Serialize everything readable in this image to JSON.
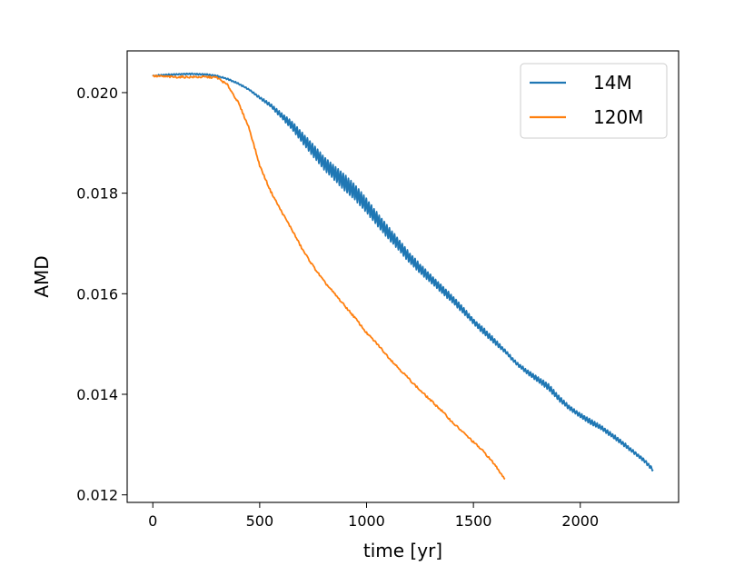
{
  "chart_data": {
    "type": "line",
    "title": "",
    "xlabel": "time [yr]",
    "ylabel": "AMD",
    "xlim": [
      -120,
      2460
    ],
    "ylim": [
      0.01185,
      0.02083
    ],
    "xticks": [
      0,
      500,
      1000,
      1500,
      2000
    ],
    "xtick_labels": [
      "0",
      "500",
      "1000",
      "1500",
      "2000"
    ],
    "yticks": [
      0.012,
      0.014,
      0.016,
      0.018,
      0.02
    ],
    "ytick_labels": [
      "0.012",
      "0.014",
      "0.016",
      "0.018",
      "0.020"
    ],
    "grid": false,
    "legend_position": "top-right",
    "series": [
      {
        "name": "14M",
        "color": "#1f77b4",
        "x": [
          0,
          50,
          100,
          150,
          200,
          250,
          300,
          350,
          400,
          450,
          500,
          550,
          600,
          650,
          700,
          750,
          800,
          850,
          900,
          950,
          1000,
          1050,
          1100,
          1150,
          1200,
          1250,
          1300,
          1350,
          1400,
          1450,
          1500,
          1550,
          1600,
          1650,
          1700,
          1750,
          1800,
          1850,
          1900,
          1950,
          2000,
          2050,
          2100,
          2150,
          2200,
          2250,
          2300,
          2340
        ],
        "y": [
          0.02033,
          0.02035,
          0.02036,
          0.02037,
          0.02037,
          0.02036,
          0.02033,
          0.02027,
          0.02018,
          0.02006,
          0.0199,
          0.01975,
          0.01955,
          0.01935,
          0.0191,
          0.01885,
          0.0186,
          0.0184,
          0.0182,
          0.018,
          0.01775,
          0.01748,
          0.01722,
          0.01698,
          0.01672,
          0.0165,
          0.0163,
          0.0161,
          0.0159,
          0.01568,
          0.01545,
          0.01525,
          0.01505,
          0.01485,
          0.01462,
          0.01445,
          0.0143,
          0.01415,
          0.01392,
          0.01373,
          0.01358,
          0.01345,
          0.01333,
          0.01318,
          0.01302,
          0.01285,
          0.01268,
          0.0125
        ],
        "oscillation": [
          1e-05,
          1e-05,
          1e-05,
          1e-05,
          1e-05,
          1e-05,
          1e-05,
          1e-05,
          1e-05,
          1e-05,
          2e-05,
          3e-05,
          5e-05,
          8e-05,
          0.0001,
          0.00012,
          0.00013,
          0.00014,
          0.00016,
          0.00015,
          0.00014,
          0.00013,
          0.00012,
          0.00011,
          0.0001,
          9e-05,
          8e-05,
          8e-05,
          7e-05,
          6e-05,
          5e-05,
          6e-05,
          5e-05,
          3e-05,
          3e-05,
          4e-05,
          5e-05,
          6e-05,
          5e-05,
          4e-05,
          4e-05,
          5e-05,
          4e-05,
          4e-05,
          4e-05,
          3e-05,
          3e-05,
          3e-05
        ]
      },
      {
        "name": "120M",
        "color": "#ff7f0e",
        "x": [
          0,
          50,
          100,
          150,
          200,
          250,
          300,
          350,
          400,
          450,
          500,
          550,
          600,
          650,
          700,
          750,
          800,
          850,
          900,
          950,
          1000,
          1050,
          1100,
          1150,
          1200,
          1250,
          1300,
          1350,
          1400,
          1450,
          1500,
          1550,
          1600,
          1650
        ],
        "y": [
          0.02033,
          0.02032,
          0.02031,
          0.02031,
          0.02031,
          0.02031,
          0.0203,
          0.02015,
          0.0198,
          0.0193,
          0.01855,
          0.01805,
          0.01765,
          0.01728,
          0.01688,
          0.01655,
          0.01625,
          0.016,
          0.01575,
          0.0155,
          0.01522,
          0.015,
          0.01475,
          0.01452,
          0.0143,
          0.01408,
          0.01388,
          0.01368,
          0.01345,
          0.01325,
          0.01305,
          0.01285,
          0.0126,
          0.0123
        ]
      }
    ]
  }
}
